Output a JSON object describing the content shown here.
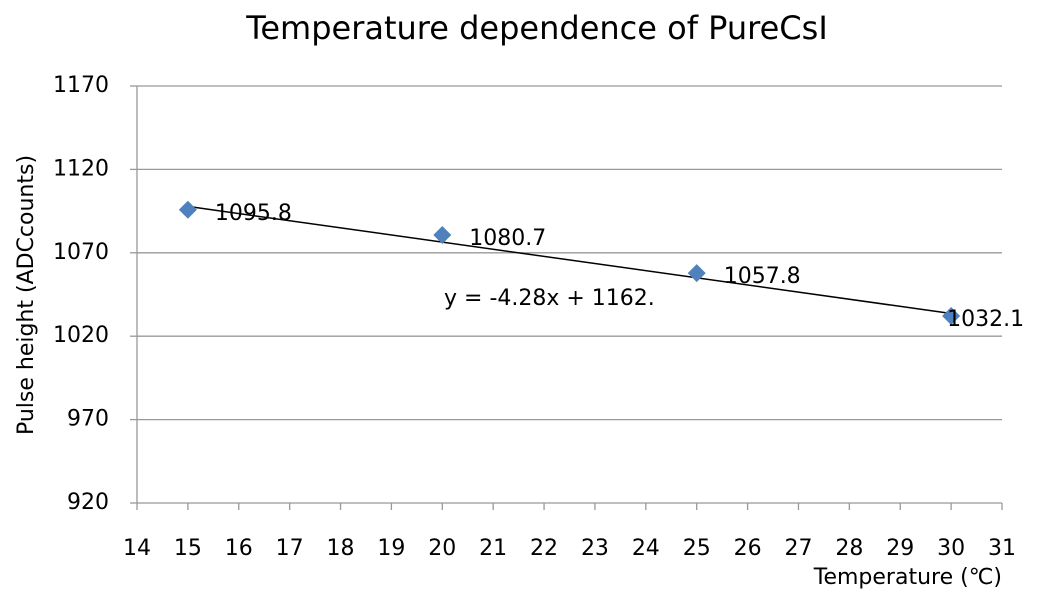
{
  "chart_data": {
    "type": "scatter",
    "title": "Temperature dependence of PureCsI",
    "x_label": "Temperature (℃)",
    "y_label": "Pulse height (ADCcounts)",
    "series": [
      {
        "name": "PureCsI",
        "color": "#4f81bd",
        "x": [
          15,
          20,
          25,
          30
        ],
        "values": [
          1095.8,
          1080.7,
          1057.8,
          1032.1
        ]
      }
    ],
    "trendline": {
      "slope": -4.28,
      "intercept": 1162,
      "label": "y = -4.28x + 1162."
    },
    "xlim": [
      14,
      31
    ],
    "xticks": [
      14,
      15,
      16,
      17,
      18,
      19,
      20,
      21,
      22,
      23,
      24,
      25,
      26,
      27,
      28,
      29,
      30,
      31
    ],
    "ylim": [
      920,
      1170
    ],
    "yticks": [
      920,
      970,
      1020,
      1070,
      1120,
      1170
    ],
    "grid": true
  }
}
